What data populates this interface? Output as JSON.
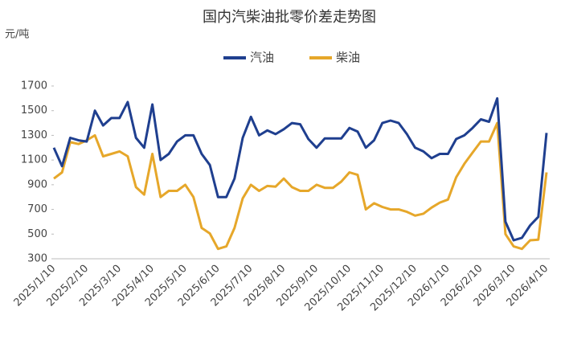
{
  "chart_data": {
    "type": "line",
    "title": "国内汽柴油批零价差走势图",
    "y_label": "元/吨",
    "categories": [
      "2025/1/10",
      null,
      null,
      null,
      "2025/2/10",
      null,
      null,
      null,
      "2025/3/10",
      null,
      null,
      null,
      "2025/4/10",
      null,
      null,
      null,
      "2025/5/10",
      null,
      null,
      null,
      "2025/6/10",
      null,
      null,
      null,
      "2025/7/10",
      null,
      null,
      null,
      "2025/8/10",
      null,
      null,
      null,
      "2025/9/10",
      null,
      null,
      null,
      "2025/10/10",
      null,
      null,
      null,
      "2025/11/10",
      null,
      null,
      null,
      "2025/12/10",
      null,
      null,
      null,
      "2026/1/10",
      null,
      null,
      null,
      "2026/2/10",
      null,
      null,
      null,
      "2026/3/10",
      null,
      null,
      null,
      "2026/4/10"
    ],
    "series": [
      {
        "name": "汽油",
        "color": "#1f3f8f",
        "values": [
          1200,
          1050,
          1280,
          1260,
          1250,
          1500,
          1380,
          1440,
          1440,
          1570,
          1280,
          1200,
          1550,
          1100,
          1150,
          1250,
          1300,
          1300,
          1150,
          1060,
          800,
          800,
          950,
          1280,
          1450,
          1300,
          1340,
          1310,
          1350,
          1400,
          1390,
          1270,
          1200,
          1275,
          1275,
          1275,
          1360,
          1330,
          1200,
          1260,
          1400,
          1420,
          1400,
          1310,
          1200,
          1170,
          1115,
          1150,
          1150,
          1270,
          1300,
          1360,
          1430,
          1410,
          1600,
          600,
          450,
          470,
          570,
          640,
          1320
        ]
      },
      {
        "name": "柴油",
        "color": "#e6a72a",
        "values": [
          950,
          1000,
          1245,
          1230,
          1260,
          1300,
          1130,
          1150,
          1170,
          1130,
          880,
          820,
          1150,
          800,
          850,
          850,
          900,
          800,
          550,
          505,
          380,
          400,
          550,
          790,
          900,
          850,
          890,
          885,
          950,
          880,
          850,
          850,
          900,
          875,
          875,
          925,
          1000,
          980,
          700,
          750,
          720,
          700,
          700,
          680,
          650,
          665,
          715,
          755,
          780,
          960,
          1070,
          1160,
          1250,
          1250,
          1400,
          500,
          400,
          380,
          450,
          455,
          1000
        ]
      }
    ],
    "ylim": [
      300,
      1700
    ],
    "yticks": [
      300,
      500,
      700,
      900,
      1100,
      1300,
      1500,
      1700
    ],
    "legend": "top"
  }
}
